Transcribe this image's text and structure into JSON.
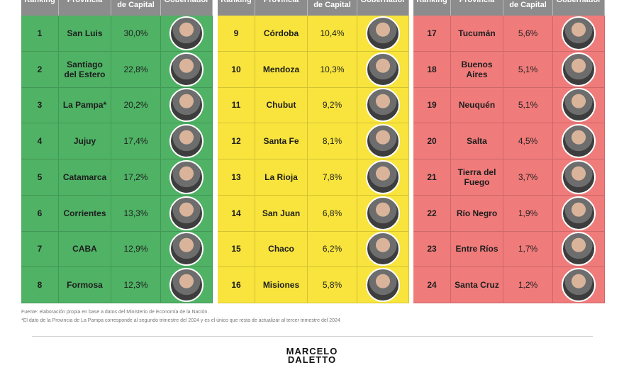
{
  "columns": [
    "Ranking",
    "Provincia",
    "de Capital",
    "Gobernador"
  ],
  "tables": [
    {
      "color": "#4fb265",
      "rows": [
        [
          1,
          "San Luis",
          "30,0%"
        ],
        [
          2,
          "Santiago del Estero",
          "22,8%"
        ],
        [
          3,
          "La Pampa*",
          "20,2%"
        ],
        [
          4,
          "Jujuy",
          "17,4%"
        ],
        [
          5,
          "Catamarca",
          "17,2%"
        ],
        [
          6,
          "Corrientes",
          "13,3%"
        ],
        [
          7,
          "CABA",
          "12,9%"
        ],
        [
          8,
          "Formosa",
          "12,3%"
        ]
      ]
    },
    {
      "color": "#f8e43c",
      "rows": [
        [
          9,
          "Córdoba",
          "10,4%"
        ],
        [
          10,
          "Mendoza",
          "10,3%"
        ],
        [
          11,
          "Chubut",
          "9,2%"
        ],
        [
          12,
          "Santa Fe",
          "8,1%"
        ],
        [
          13,
          "La Rioja",
          "7,8%"
        ],
        [
          14,
          "San Juan",
          "6,8%"
        ],
        [
          15,
          "Chaco",
          "6,2%"
        ],
        [
          16,
          "Misiones",
          "5,8%"
        ]
      ]
    },
    {
      "color": "#f07b7b",
      "rows": [
        [
          17,
          "Tucumán",
          "5,6%"
        ],
        [
          18,
          "Buenos Aires",
          "5,1%"
        ],
        [
          19,
          "Neuquén",
          "5,1%"
        ],
        [
          20,
          "Salta",
          "4,5%"
        ],
        [
          21,
          "Tierra del Fuego",
          "3,7%"
        ],
        [
          22,
          "Río Negro",
          "1,9%"
        ],
        [
          23,
          "Entre Ríos",
          "1,7%"
        ],
        [
          24,
          "Santa Cruz",
          "1,2%"
        ]
      ]
    }
  ],
  "footer": {
    "source": "Fuente: elaboración propia en base a datos del Ministerio de Economía de la Nación.",
    "note": "*El dato de la Provincia de La Pampa corresponde al segundo trimestre del 2024 y es el único que resta de actualizar al tercer trimestre del 2024",
    "logo": [
      "MARCELO",
      "DALETTO"
    ]
  }
}
